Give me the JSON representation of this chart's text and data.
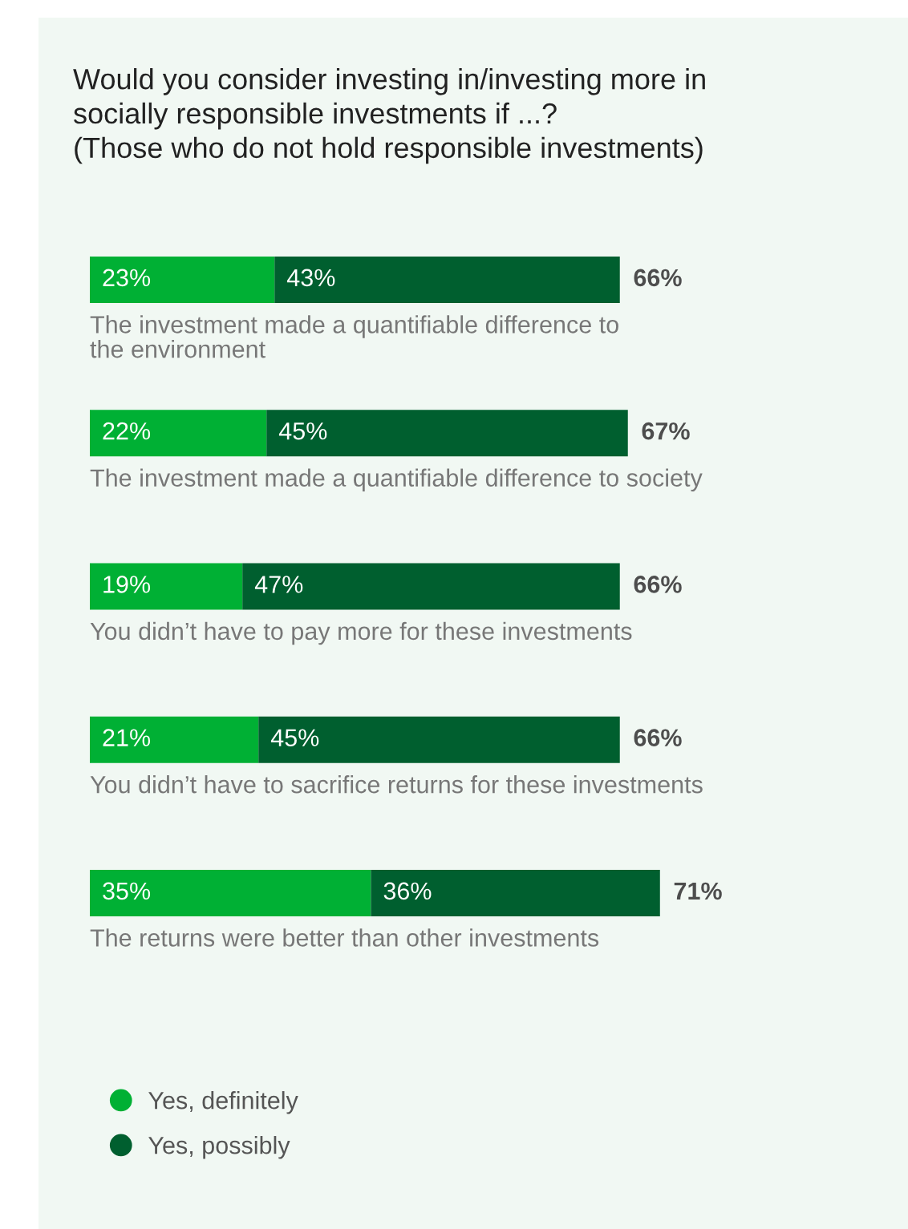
{
  "chart_data": {
    "type": "bar",
    "orientation": "horizontal",
    "stacked": true,
    "title": "Would you consider investing in/investing more in\nsocially responsible investments if ...?\n(Those who do not hold responsible investments)",
    "categories": [
      "The investment made a quantifiable difference to\nthe environment",
      "The investment made a quantifiable difference to society",
      "You didn’t have to pay more for these investments",
      "You didn’t have to sacrifice returns for these investments",
      "The returns were better than other investments"
    ],
    "series": [
      {
        "name": "Yes, definitely",
        "color": "#00b034",
        "values": [
          23,
          22,
          19,
          21,
          35
        ],
        "value_labels": [
          "23%",
          "22%",
          "19%",
          "21%",
          "35%"
        ]
      },
      {
        "name": "Yes, possibly",
        "color": "#005f2f",
        "values": [
          43,
          45,
          47,
          45,
          36
        ],
        "value_labels": [
          "43%",
          "45%",
          "47%",
          "45%",
          "36%"
        ]
      }
    ],
    "totals": [
      "66%",
      "67%",
      "66%",
      "66%",
      "71%"
    ],
    "legend": "bottom left"
  }
}
